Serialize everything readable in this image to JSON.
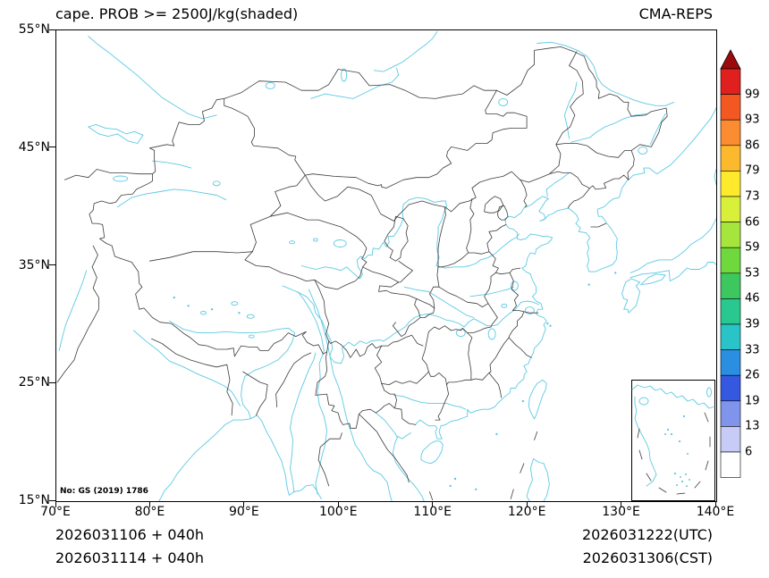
{
  "header": {
    "title": "cape. PROB >= 2500J/kg(shaded)",
    "model": "CMA-REPS"
  },
  "axes": {
    "lat_ticks": [
      "55°N",
      "45°N",
      "35°N",
      "25°N",
      "15°N"
    ],
    "lon_ticks": [
      "70°E",
      "80°E",
      "90°E",
      "100°E",
      "110°E",
      "120°E",
      "130°E",
      "140°E"
    ]
  },
  "colorbar": {
    "values": [
      99,
      93,
      86,
      79,
      73,
      66,
      59,
      53,
      46,
      39,
      33,
      26,
      19,
      13,
      6
    ],
    "colors_top_to_bottom": [
      "#e01f1f",
      "#f35822",
      "#fb8c32",
      "#fdb92e",
      "#fee92c",
      "#d8f03a",
      "#a6e53c",
      "#6fd83c",
      "#3cc85e",
      "#28c88e",
      "#28c4c8",
      "#2a8fe0",
      "#3558e0",
      "#8194ec",
      "#c6ccf6",
      "#ffffff"
    ],
    "arrow_color": "#9c0b0b"
  },
  "annotations": {
    "license": "No: GS (2019) 1786",
    "init_utc": "2026031106 + 040h",
    "init_cst": "2026031114 + 040h",
    "valid_utc": "2026031222(UTC)",
    "valid_cst": "2026031306(CST)"
  },
  "map_colors": {
    "coastline": "#5cc9e4",
    "boundary": "#3c3c3c"
  },
  "chart_data": {
    "type": "heatmap",
    "title": "cape. PROB >= 2500J/kg(shaded)",
    "model": "CMA-REPS",
    "x_axis": {
      "label": "longitude",
      "unit": "°E",
      "range": [
        70,
        140
      ],
      "ticks": [
        70,
        80,
        90,
        100,
        110,
        120,
        130,
        140
      ]
    },
    "y_axis": {
      "label": "latitude",
      "unit": "°N",
      "range": [
        15,
        55
      ],
      "ticks": [
        15,
        25,
        35,
        45,
        55
      ]
    },
    "colorbar_levels_percent": [
      6,
      13,
      19,
      26,
      33,
      39,
      46,
      53,
      59,
      66,
      73,
      79,
      86,
      93,
      99
    ],
    "shaded_regions": []
  }
}
